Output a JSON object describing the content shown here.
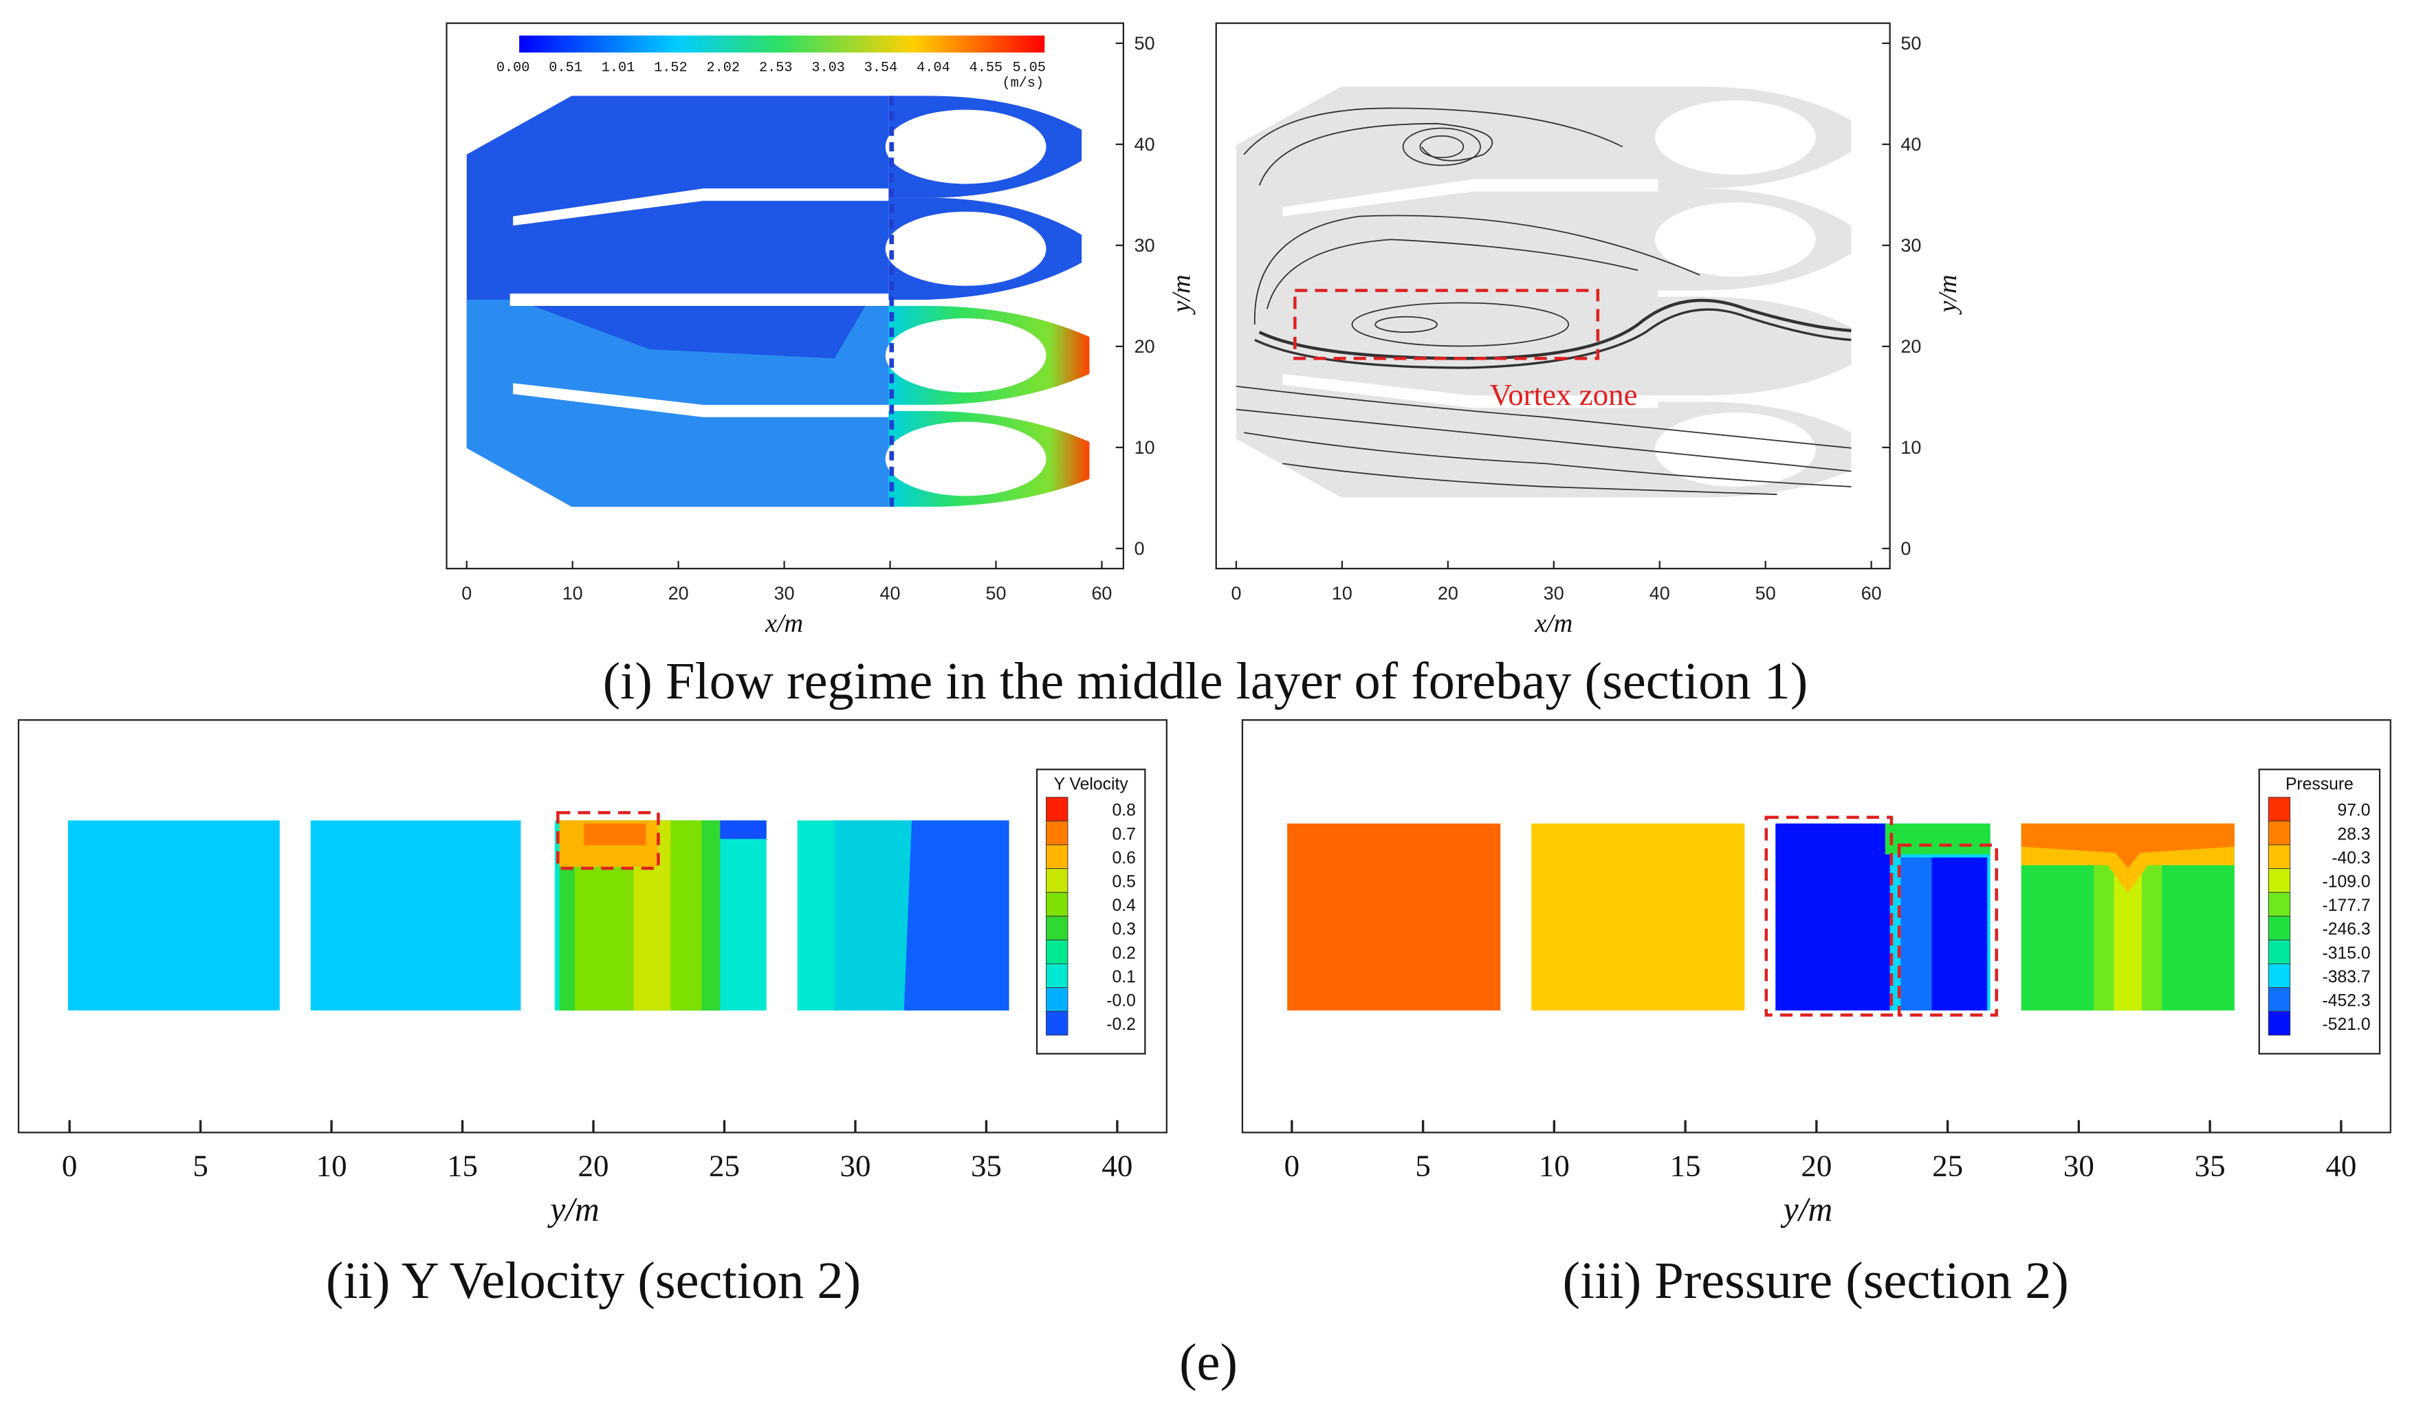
{
  "panel_i_left": {
    "colorbar": {
      "labels": [
        "0.00",
        "0.51",
        "1.01",
        "1.52",
        "2.02",
        "2.53",
        "3.03",
        "3.54",
        "4.04",
        "4.55",
        "5.05"
      ],
      "colors": [
        "#0000ff",
        "#1e50f0",
        "#1e90ff",
        "#00ccff",
        "#00e8b0",
        "#30e060",
        "#90e030",
        "#d0e000",
        "#ffd000",
        "#ff8000",
        "#ff2000"
      ],
      "unit": "(m/s)"
    },
    "x_label": "x/m",
    "y_label": "y/m",
    "xlim": [
      0,
      60
    ],
    "xticks": [
      0,
      10,
      20,
      30,
      40,
      50,
      60
    ],
    "ylim": [
      0,
      50
    ],
    "yticks": [
      0,
      10,
      20,
      30,
      40,
      50
    ]
  },
  "panel_i_right": {
    "annotation": "Vortex zone",
    "x_label": "x/m",
    "y_label": "y/m",
    "xlim": [
      0,
      60
    ],
    "xticks": [
      0,
      10,
      20,
      30,
      40,
      50,
      60
    ],
    "ylim": [
      0,
      50
    ],
    "yticks": [
      0,
      10,
      20,
      30,
      40,
      50
    ]
  },
  "caption_i": "(i) Flow regime in the middle layer of forebay (section 1)",
  "panel_ii": {
    "legend": {
      "title": "Y Velocity",
      "labels": [
        "0.8",
        "0.7",
        "0.6",
        "0.5",
        "0.4",
        "0.3",
        "0.2",
        "0.1",
        "-0.0",
        "-0.2"
      ],
      "colors": [
        "#ff2000",
        "#ff7a00",
        "#ffb400",
        "#c8e600",
        "#7ee000",
        "#30d830",
        "#00e890",
        "#00e8d0",
        "#00b0ff",
        "#1050ff"
      ]
    },
    "x_label": "y/m",
    "xlim": [
      0,
      40
    ],
    "xticks": [
      0,
      5,
      10,
      15,
      20,
      25,
      30,
      35,
      40
    ]
  },
  "caption_ii": "(ii) Y Velocity (section 2)",
  "panel_iii": {
    "legend": {
      "title": "Pressure",
      "labels": [
        "97.0",
        "28.3",
        "-40.3",
        "-109.0",
        "-177.7",
        "-246.3",
        "-315.0",
        "-383.7",
        "-452.3",
        "-521.0"
      ],
      "colors": [
        "#ff3000",
        "#ff8000",
        "#ffc000",
        "#c8f000",
        "#70e820",
        "#20e040",
        "#00e8a0",
        "#00d8ff",
        "#1070ff",
        "#0010ff"
      ]
    },
    "x_label": "y/m",
    "xlim": [
      0,
      40
    ],
    "xticks": [
      0,
      5,
      10,
      15,
      20,
      25,
      30,
      35,
      40
    ]
  },
  "caption_iii": "(iii) Pressure (section 2)",
  "caption_e": "(e)"
}
